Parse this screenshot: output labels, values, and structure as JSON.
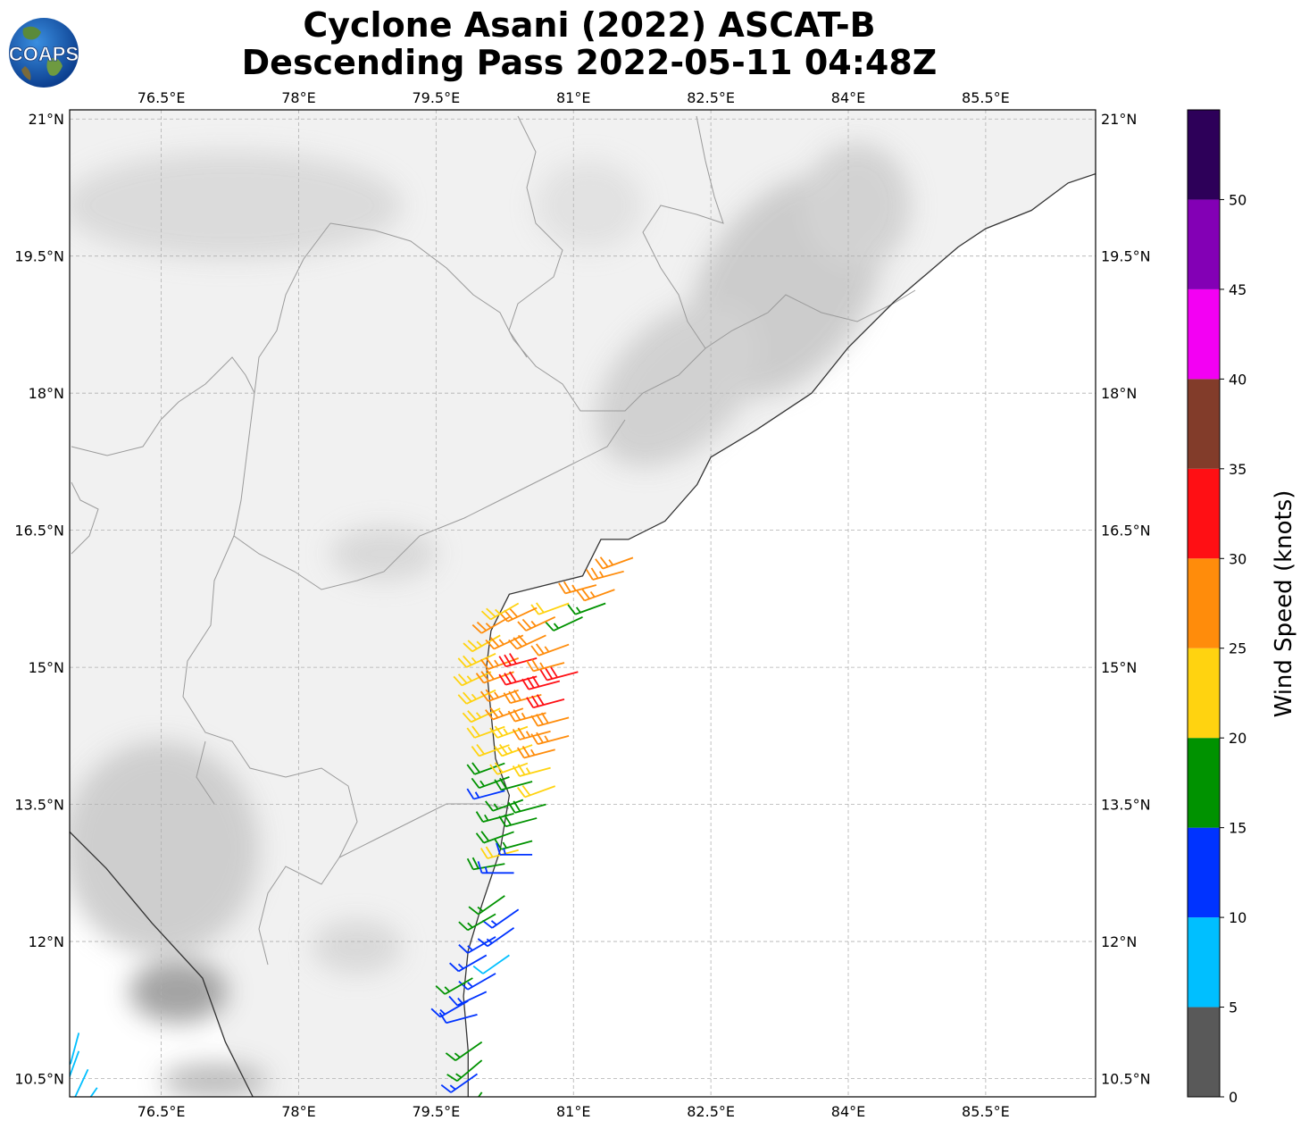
{
  "title": {
    "line1": "Cyclone Asani (2022) ASCAT-B",
    "line2": "Descending Pass 2022-05-11 04:48Z"
  },
  "logo": {
    "text": "COAPS",
    "icon": "globe-logo-icon"
  },
  "map": {
    "lon_range": [
      75.5,
      86.7
    ],
    "lat_range": [
      10.3,
      21.1
    ],
    "lon_ticks": [
      {
        "value": 76.5,
        "label": "76.5°E"
      },
      {
        "value": 78.0,
        "label": "78°E"
      },
      {
        "value": 79.5,
        "label": "79.5°E"
      },
      {
        "value": 81.0,
        "label": "81°E"
      },
      {
        "value": 82.5,
        "label": "82.5°E"
      },
      {
        "value": 84.0,
        "label": "84°E"
      },
      {
        "value": 85.5,
        "label": "85.5°E"
      }
    ],
    "lat_ticks": [
      {
        "value": 21.0,
        "label": "21°N"
      },
      {
        "value": 19.5,
        "label": "19.5°N"
      },
      {
        "value": 18.0,
        "label": "18°N"
      },
      {
        "value": 16.5,
        "label": "16.5°N"
      },
      {
        "value": 15.0,
        "label": "15°N"
      },
      {
        "value": 13.5,
        "label": "13.5°N"
      },
      {
        "value": 12.0,
        "label": "12°N"
      },
      {
        "value": 10.5,
        "label": "10.5°N"
      }
    ],
    "grid": true,
    "coastline": [
      [
        77.5,
        10.3
      ],
      [
        77.2,
        10.9
      ],
      [
        76.95,
        11.6
      ],
      [
        76.4,
        12.2
      ],
      [
        75.9,
        12.8
      ],
      [
        75.5,
        13.2
      ]
    ],
    "east_coast": [
      [
        79.85,
        10.3
      ],
      [
        79.85,
        10.8
      ],
      [
        79.8,
        11.4
      ],
      [
        79.85,
        11.9
      ],
      [
        80.0,
        12.4
      ],
      [
        80.2,
        13.0
      ],
      [
        80.3,
        13.6
      ],
      [
        80.15,
        14.0
      ],
      [
        80.1,
        14.5
      ],
      [
        80.05,
        15.0
      ],
      [
        80.1,
        15.4
      ],
      [
        80.3,
        15.8
      ],
      [
        80.7,
        15.9
      ],
      [
        81.1,
        16.0
      ],
      [
        81.3,
        16.4
      ],
      [
        81.6,
        16.4
      ],
      [
        82.0,
        16.6
      ],
      [
        82.35,
        17.0
      ],
      [
        82.5,
        17.3
      ],
      [
        83.0,
        17.6
      ],
      [
        83.6,
        18.0
      ],
      [
        84.0,
        18.5
      ],
      [
        84.5,
        19.0
      ],
      [
        84.85,
        19.3
      ],
      [
        85.2,
        19.6
      ],
      [
        85.5,
        19.8
      ],
      [
        86.0,
        20.0
      ],
      [
        86.4,
        20.3
      ],
      [
        86.7,
        20.4
      ]
    ],
    "wind_vectors": [
      {
        "lon": 81.65,
        "lat": 16.2,
        "spd": 27,
        "dir": 250
      },
      {
        "lon": 81.55,
        "lat": 16.05,
        "spd": 26,
        "dir": 255
      },
      {
        "lon": 81.45,
        "lat": 15.85,
        "spd": 25,
        "dir": 250
      },
      {
        "lon": 81.25,
        "lat": 15.9,
        "spd": 27,
        "dir": 255
      },
      {
        "lon": 81.35,
        "lat": 15.7,
        "spd": 17,
        "dir": 250
      },
      {
        "lon": 81.1,
        "lat": 15.55,
        "spd": 17,
        "dir": 245
      },
      {
        "lon": 80.95,
        "lat": 15.7,
        "spd": 22,
        "dir": 250
      },
      {
        "lon": 80.8,
        "lat": 15.55,
        "spd": 27,
        "dir": 245
      },
      {
        "lon": 80.6,
        "lat": 15.65,
        "spd": 28,
        "dir": 245
      },
      {
        "lon": 80.4,
        "lat": 15.7,
        "spd": 24,
        "dir": 240
      },
      {
        "lon": 80.3,
        "lat": 15.55,
        "spd": 27,
        "dir": 240
      },
      {
        "lon": 80.2,
        "lat": 15.35,
        "spd": 24,
        "dir": 240
      },
      {
        "lon": 80.45,
        "lat": 15.35,
        "spd": 27,
        "dir": 245
      },
      {
        "lon": 80.7,
        "lat": 15.35,
        "spd": 28,
        "dir": 245
      },
      {
        "lon": 80.95,
        "lat": 15.25,
        "spd": 26,
        "dir": 250
      },
      {
        "lon": 80.15,
        "lat": 15.15,
        "spd": 23,
        "dir": 245
      },
      {
        "lon": 80.4,
        "lat": 15.1,
        "spd": 26,
        "dir": 250
      },
      {
        "lon": 80.6,
        "lat": 15.1,
        "spd": 31,
        "dir": 255
      },
      {
        "lon": 80.9,
        "lat": 15.05,
        "spd": 25,
        "dir": 255
      },
      {
        "lon": 81.05,
        "lat": 14.95,
        "spd": 32,
        "dir": 255
      },
      {
        "lon": 80.1,
        "lat": 14.95,
        "spd": 24,
        "dir": 245
      },
      {
        "lon": 80.35,
        "lat": 14.95,
        "spd": 28,
        "dir": 250
      },
      {
        "lon": 80.6,
        "lat": 14.9,
        "spd": 30,
        "dir": 255
      },
      {
        "lon": 80.85,
        "lat": 14.85,
        "spd": 32,
        "dir": 255
      },
      {
        "lon": 80.15,
        "lat": 14.75,
        "spd": 24,
        "dir": 245
      },
      {
        "lon": 80.4,
        "lat": 14.75,
        "spd": 26,
        "dir": 250
      },
      {
        "lon": 80.65,
        "lat": 14.7,
        "spd": 28,
        "dir": 255
      },
      {
        "lon": 80.9,
        "lat": 14.65,
        "spd": 32,
        "dir": 255
      },
      {
        "lon": 80.2,
        "lat": 14.55,
        "spd": 23,
        "dir": 245
      },
      {
        "lon": 80.45,
        "lat": 14.55,
        "spd": 25,
        "dir": 250
      },
      {
        "lon": 80.7,
        "lat": 14.5,
        "spd": 27,
        "dir": 255
      },
      {
        "lon": 80.95,
        "lat": 14.45,
        "spd": 28,
        "dir": 255
      },
      {
        "lon": 80.25,
        "lat": 14.35,
        "spd": 22,
        "dir": 250
      },
      {
        "lon": 80.5,
        "lat": 14.35,
        "spd": 24,
        "dir": 250
      },
      {
        "lon": 80.75,
        "lat": 14.3,
        "spd": 26,
        "dir": 255
      },
      {
        "lon": 80.95,
        "lat": 14.25,
        "spd": 27,
        "dir": 255
      },
      {
        "lon": 80.3,
        "lat": 14.15,
        "spd": 21,
        "dir": 250
      },
      {
        "lon": 80.55,
        "lat": 14.15,
        "spd": 23,
        "dir": 250
      },
      {
        "lon": 80.8,
        "lat": 14.1,
        "spd": 25,
        "dir": 255
      },
      {
        "lon": 80.25,
        "lat": 13.95,
        "spd": 18,
        "dir": 250
      },
      {
        "lon": 80.5,
        "lat": 13.95,
        "spd": 22,
        "dir": 250
      },
      {
        "lon": 80.75,
        "lat": 13.9,
        "spd": 23,
        "dir": 255
      },
      {
        "lon": 80.3,
        "lat": 13.8,
        "spd": 17,
        "dir": 250
      },
      {
        "lon": 80.55,
        "lat": 13.75,
        "spd": 18,
        "dir": 255
      },
      {
        "lon": 80.8,
        "lat": 13.7,
        "spd": 22,
        "dir": 250
      },
      {
        "lon": 80.25,
        "lat": 13.65,
        "spd": 13,
        "dir": 255
      },
      {
        "lon": 80.45,
        "lat": 13.55,
        "spd": 17,
        "dir": 250
      },
      {
        "lon": 80.7,
        "lat": 13.5,
        "spd": 18,
        "dir": 255
      },
      {
        "lon": 80.35,
        "lat": 13.4,
        "spd": 17,
        "dir": 255
      },
      {
        "lon": 80.6,
        "lat": 13.35,
        "spd": 18,
        "dir": 255
      },
      {
        "lon": 80.35,
        "lat": 13.2,
        "spd": 18,
        "dir": 250
      },
      {
        "lon": 80.55,
        "lat": 13.1,
        "spd": 17,
        "dir": 255
      },
      {
        "lon": 80.4,
        "lat": 13.0,
        "spd": 22,
        "dir": 255
      },
      {
        "lon": 80.55,
        "lat": 12.95,
        "spd": 13,
        "dir": 270
      },
      {
        "lon": 80.25,
        "lat": 12.85,
        "spd": 18,
        "dir": 260
      },
      {
        "lon": 80.35,
        "lat": 12.75,
        "spd": 13,
        "dir": 270
      },
      {
        "lon": 80.25,
        "lat": 12.5,
        "spd": 17,
        "dir": 235
      },
      {
        "lon": 80.4,
        "lat": 12.35,
        "spd": 13,
        "dir": 235
      },
      {
        "lon": 80.15,
        "lat": 12.3,
        "spd": 17,
        "dir": 240
      },
      {
        "lon": 80.35,
        "lat": 12.15,
        "spd": 13,
        "dir": 235
      },
      {
        "lon": 80.15,
        "lat": 12.05,
        "spd": 13,
        "dir": 240
      },
      {
        "lon": 80.3,
        "lat": 11.85,
        "spd": 8,
        "dir": 235
      },
      {
        "lon": 80.05,
        "lat": 11.85,
        "spd": 13,
        "dir": 240
      },
      {
        "lon": 80.15,
        "lat": 11.65,
        "spd": 13,
        "dir": 240
      },
      {
        "lon": 79.9,
        "lat": 11.6,
        "spd": 17,
        "dir": 240
      },
      {
        "lon": 80.05,
        "lat": 11.45,
        "spd": 13,
        "dir": 245
      },
      {
        "lon": 79.85,
        "lat": 11.35,
        "spd": 13,
        "dir": 240
      },
      {
        "lon": 79.95,
        "lat": 11.2,
        "spd": 12,
        "dir": 255
      },
      {
        "lon": 80.0,
        "lat": 10.9,
        "spd": 17,
        "dir": 235
      },
      {
        "lon": 80.0,
        "lat": 10.7,
        "spd": 17,
        "dir": 230
      },
      {
        "lon": 79.95,
        "lat": 10.55,
        "spd": 13,
        "dir": 235
      },
      {
        "lon": 80.0,
        "lat": 10.35,
        "spd": 17,
        "dir": 215
      },
      {
        "lon": 75.6,
        "lat": 11.0,
        "spd": 8,
        "dir": 195
      },
      {
        "lon": 75.6,
        "lat": 10.8,
        "spd": 8,
        "dir": 200
      },
      {
        "lon": 75.7,
        "lat": 10.6,
        "spd": 8,
        "dir": 205
      },
      {
        "lon": 75.8,
        "lat": 10.4,
        "spd": 8,
        "dir": 215
      }
    ]
  },
  "colorbar": {
    "label": "Wind Speed (knots)",
    "ticks": [
      "0",
      "5",
      "10",
      "15",
      "20",
      "25",
      "30",
      "35",
      "40",
      "45",
      "50"
    ],
    "bins": [
      {
        "from": 0,
        "to": 5,
        "color": "#595959"
      },
      {
        "from": 5,
        "to": 10,
        "color": "#00bfff"
      },
      {
        "from": 10,
        "to": 15,
        "color": "#0033ff"
      },
      {
        "from": 15,
        "to": 20,
        "color": "#009200"
      },
      {
        "from": 20,
        "to": 25,
        "color": "#ffd310"
      },
      {
        "from": 25,
        "to": 30,
        "color": "#ff8c0b"
      },
      {
        "from": 30,
        "to": 35,
        "color": "#ff0f14"
      },
      {
        "from": 35,
        "to": 40,
        "color": "#823c2a"
      },
      {
        "from": 40,
        "to": 45,
        "color": "#f300f3"
      },
      {
        "from": 45,
        "to": 50,
        "color": "#8300b5"
      },
      {
        "from": 50,
        "to": 55,
        "color": "#2d0059"
      }
    ]
  }
}
